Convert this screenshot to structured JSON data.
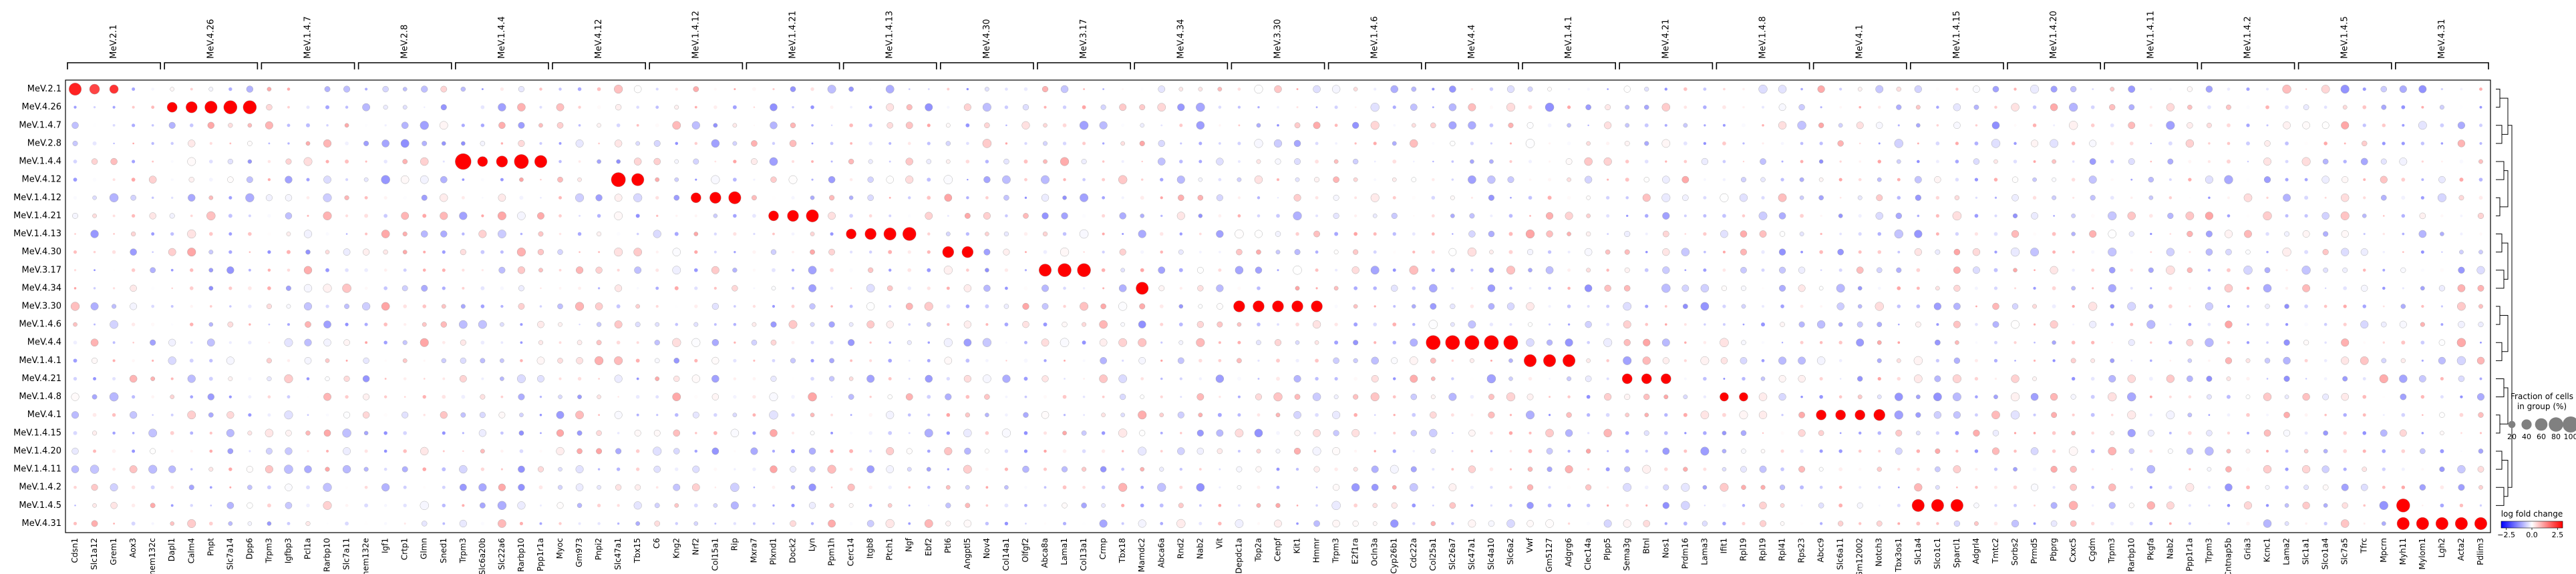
{
  "chart_data": {
    "type": "dotplot",
    "rows": [
      "MeV.2.1",
      "MeV.4.26",
      "MeV.1.4.7",
      "MeV.2.8",
      "MeV.1.4.4",
      "MeV.4.12",
      "MeV.1.4.12",
      "MeV.1.4.21",
      "MeV.1.4.13",
      "MeV.4.30",
      "MeV.3.17",
      "MeV.4.34",
      "MeV.3.30",
      "MeV.1.4.6",
      "MeV.4.4",
      "MeV.1.4.1",
      "MeV.4.21",
      "MeV.1.4.8",
      "MeV.4.1",
      "MeV.1.4.15",
      "MeV.1.4.20",
      "MeV.1.4.11",
      "MeV.1.4.2",
      "MeV.1.4.5",
      "MeV.4.31"
    ],
    "groups": [
      {
        "name": "MeV.2.1",
        "genes": [
          "Cdsn1",
          "Slc1a12",
          "Grem1",
          "Aox3",
          "Tmem132c"
        ]
      },
      {
        "name": "MeV.4.26",
        "genes": [
          "Dapl1",
          "Calm4",
          "Pnpt",
          "Slc7a14",
          "Dpp6"
        ]
      },
      {
        "name": "MeV.1.4.7",
        "genes": [
          "Trpm3",
          "Igfbp3",
          "Pcl1a",
          "Rarbp10",
          "Slc7a11"
        ]
      },
      {
        "name": "MeV.2.8",
        "genes": [
          "Tmem132e",
          "Igf1",
          "Crtp1",
          "Glmn",
          "Sned1"
        ]
      },
      {
        "name": "MeV.1.4.4",
        "genes": [
          "Trpm3",
          "Slc6a20b",
          "Slc22a6",
          "Rarbp10",
          "Ppp1r1a"
        ]
      },
      {
        "name": "MeV.4.12",
        "genes": [
          "Myoc",
          "Gm973",
          "Pnpi2",
          "Slc47a1",
          "Tbx15"
        ]
      },
      {
        "name": "MeV.1.4.12",
        "genes": [
          "C6",
          "Kng2",
          "Nrf2",
          "Col15a1",
          "Rip"
        ]
      },
      {
        "name": "MeV.1.4.21",
        "genes": [
          "Mxra7",
          "Plxnd1",
          "Dock2",
          "Lyn",
          "Ppm1h"
        ]
      },
      {
        "name": "MeV.1.4.13",
        "genes": [
          "Cerc14",
          "Itgb8",
          "Ptch1",
          "Ngf",
          "Ebf2"
        ]
      },
      {
        "name": "MeV.4.30",
        "genes": [
          "Ptl6",
          "Angptl5",
          "Nov4",
          "Col14a1",
          "Olfgf2"
        ]
      },
      {
        "name": "MeV.3.17",
        "genes": [
          "Abca8a",
          "Lama1",
          "Col13a1",
          "Crmp",
          "Tbx18"
        ]
      },
      {
        "name": "MeV.4.34",
        "genes": [
          "Mamdc2",
          "Abca6a",
          "Rnd2",
          "Nab2",
          "Vit"
        ]
      },
      {
        "name": "MeV.3.30",
        "genes": [
          "Depdc1a",
          "Top2a",
          "Cenpf",
          "Kit1",
          "Hmmr"
        ]
      },
      {
        "name": "MeV.1.4.6",
        "genes": [
          "Trpm3",
          "E2f1ra",
          "Ocln3a",
          "Cyp26b1",
          "Cdc22a"
        ]
      },
      {
        "name": "MeV.4.4",
        "genes": [
          "Col25a1",
          "Slc26a7",
          "Slc47a1",
          "Slc4a10",
          "Slc6a2"
        ]
      },
      {
        "name": "MeV.1.4.1",
        "genes": [
          "Vwf",
          "Gm5127",
          "Adgrg6",
          "Clec14a",
          "Plpp5"
        ]
      },
      {
        "name": "MeV.4.21",
        "genes": [
          "Sema3g",
          "Btnl",
          "Nos1",
          "Prdm16",
          "Lama3"
        ]
      },
      {
        "name": "MeV.1.4.8",
        "genes": [
          "Ifit1",
          "Rpl19",
          "Rpl19",
          "Rpl41",
          "Rps23"
        ]
      },
      {
        "name": "MeV.4.1",
        "genes": [
          "Abcc9",
          "Slc6a11",
          "Gm12002",
          "Notch3",
          "Tbx3os1"
        ]
      },
      {
        "name": "MeV.1.4.15",
        "genes": [
          "Slc1a4",
          "Slco1c1",
          "Sparcl1",
          "Adgrl4",
          "Tmtc2"
        ]
      },
      {
        "name": "MeV.1.4.20",
        "genes": [
          "Sorbs2",
          "Prmd5",
          "Pbprg",
          "Cxxc5",
          "Cgdm"
        ]
      },
      {
        "name": "MeV.1.4.11",
        "genes": [
          "Trpm3",
          "Rarbp10",
          "Pkgfa",
          "Nab2",
          "Ppp1r1a"
        ]
      },
      {
        "name": "MeV.1.4.2",
        "genes": [
          "Trpm3",
          "Cntnap5b",
          "Gria3",
          "Kcnc1",
          "Lama2"
        ]
      },
      {
        "name": "MeV.1.4.5",
        "genes": [
          "Slc1a1",
          "Slco1a4",
          "Slc7a5",
          "Tfrc",
          "Mpcrn"
        ]
      },
      {
        "name": "MeV.4.31",
        "genes": [
          "Myh11",
          "Mylom1",
          "Lgh2",
          "Acta2",
          "Pdlim3"
        ]
      }
    ],
    "dominant_cells": [
      {
        "row": "MeV.2.1",
        "col": 0,
        "value": 2.6,
        "fraction": 60
      },
      {
        "row": "MeV.2.1",
        "col": 1,
        "value": 2.2,
        "fraction": 40
      },
      {
        "row": "MeV.2.1",
        "col": 2,
        "value": 2.4,
        "fraction": 30
      },
      {
        "row": "MeV.4.26",
        "col": 5,
        "value": 3.0,
        "fraction": 40
      },
      {
        "row": "MeV.4.26",
        "col": 6,
        "value": 3.0,
        "fraction": 50
      },
      {
        "row": "MeV.4.26",
        "col": 7,
        "value": 3.0,
        "fraction": 60
      },
      {
        "row": "MeV.4.26",
        "col": 8,
        "value": 3.0,
        "fraction": 70
      },
      {
        "row": "MeV.4.26",
        "col": 9,
        "value": 3.0,
        "fraction": 70
      },
      {
        "row": "MeV.1.4.4",
        "col": 20,
        "value": 3.0,
        "fraction": 100
      },
      {
        "row": "MeV.1.4.4",
        "col": 21,
        "value": 3.0,
        "fraction": 40
      },
      {
        "row": "MeV.1.4.4",
        "col": 22,
        "value": 3.0,
        "fraction": 50
      },
      {
        "row": "MeV.1.4.4",
        "col": 23,
        "value": 3.0,
        "fraction": 80
      },
      {
        "row": "MeV.1.4.4",
        "col": 24,
        "value": 3.0,
        "fraction": 60
      },
      {
        "row": "MeV.4.12",
        "col": 28,
        "value": 3.0,
        "fraction": 80
      },
      {
        "row": "MeV.4.12",
        "col": 29,
        "value": 3.0,
        "fraction": 60
      },
      {
        "row": "MeV.1.4.12",
        "col": 32,
        "value": 3.0,
        "fraction": 40
      },
      {
        "row": "MeV.1.4.12",
        "col": 33,
        "value": 3.0,
        "fraction": 50
      },
      {
        "row": "MeV.1.4.12",
        "col": 34,
        "value": 3.0,
        "fraction": 60
      },
      {
        "row": "MeV.1.4.21",
        "col": 36,
        "value": 3.0,
        "fraction": 40
      },
      {
        "row": "MeV.1.4.21",
        "col": 37,
        "value": 3.0,
        "fraction": 50
      },
      {
        "row": "MeV.1.4.21",
        "col": 38,
        "value": 3.0,
        "fraction": 60
      },
      {
        "row": "MeV.1.4.13",
        "col": 40,
        "value": 3.0,
        "fraction": 40
      },
      {
        "row": "MeV.1.4.13",
        "col": 41,
        "value": 3.0,
        "fraction": 50
      },
      {
        "row": "MeV.1.4.13",
        "col": 42,
        "value": 3.0,
        "fraction": 60
      },
      {
        "row": "MeV.1.4.13",
        "col": 43,
        "value": 3.0,
        "fraction": 70
      },
      {
        "row": "MeV.4.30",
        "col": 45,
        "value": 3.0,
        "fraction": 50
      },
      {
        "row": "MeV.4.30",
        "col": 46,
        "value": 3.0,
        "fraction": 50
      },
      {
        "row": "MeV.3.17",
        "col": 50,
        "value": 3.0,
        "fraction": 60
      },
      {
        "row": "MeV.3.17",
        "col": 51,
        "value": 3.0,
        "fraction": 70
      },
      {
        "row": "MeV.3.17",
        "col": 52,
        "value": 3.0,
        "fraction": 70
      },
      {
        "row": "MeV.4.34",
        "col": 55,
        "value": 3.0,
        "fraction": 60
      },
      {
        "row": "MeV.3.30",
        "col": 60,
        "value": 3.0,
        "fraction": 50
      },
      {
        "row": "MeV.3.30",
        "col": 61,
        "value": 3.0,
        "fraction": 50
      },
      {
        "row": "MeV.3.30",
        "col": 62,
        "value": 3.0,
        "fraction": 50
      },
      {
        "row": "MeV.3.30",
        "col": 63,
        "value": 3.0,
        "fraction": 50
      },
      {
        "row": "MeV.3.30",
        "col": 64,
        "value": 3.0,
        "fraction": 50
      },
      {
        "row": "MeV.4.4",
        "col": 70,
        "value": 3.0,
        "fraction": 80
      },
      {
        "row": "MeV.4.4",
        "col": 71,
        "value": 3.0,
        "fraction": 80
      },
      {
        "row": "MeV.4.4",
        "col": 72,
        "value": 3.0,
        "fraction": 80
      },
      {
        "row": "MeV.4.4",
        "col": 73,
        "value": 3.0,
        "fraction": 80
      },
      {
        "row": "MeV.4.4",
        "col": 74,
        "value": 3.0,
        "fraction": 80
      },
      {
        "row": "MeV.1.4.1",
        "col": 75,
        "value": 3.0,
        "fraction": 60
      },
      {
        "row": "MeV.1.4.1",
        "col": 76,
        "value": 3.0,
        "fraction": 60
      },
      {
        "row": "MeV.1.4.1",
        "col": 77,
        "value": 3.0,
        "fraction": 60
      },
      {
        "row": "MeV.4.21",
        "col": 80,
        "value": 3.0,
        "fraction": 40
      },
      {
        "row": "MeV.4.21",
        "col": 81,
        "value": 3.0,
        "fraction": 40
      },
      {
        "row": "MeV.4.21",
        "col": 82,
        "value": 3.0,
        "fraction": 40
      },
      {
        "row": "MeV.1.4.8",
        "col": 85,
        "value": 3.0,
        "fraction": 30
      },
      {
        "row": "MeV.1.4.8",
        "col": 86,
        "value": 3.0,
        "fraction": 30
      },
      {
        "row": "MeV.4.1",
        "col": 90,
        "value": 3.0,
        "fraction": 40
      },
      {
        "row": "MeV.4.1",
        "col": 91,
        "value": 3.0,
        "fraction": 40
      },
      {
        "row": "MeV.4.1",
        "col": 92,
        "value": 3.0,
        "fraction": 40
      },
      {
        "row": "MeV.4.1",
        "col": 93,
        "value": 3.0,
        "fraction": 50
      },
      {
        "row": "MeV.1.4.5",
        "col": 95,
        "value": 3.0,
        "fraction": 60
      },
      {
        "row": "MeV.1.4.5",
        "col": 96,
        "value": 3.0,
        "fraction": 60
      },
      {
        "row": "MeV.1.4.5",
        "col": 97,
        "value": 3.0,
        "fraction": 60
      },
      {
        "row": "MeV.1.4.5",
        "col": 120,
        "value": 3.0,
        "fraction": 70
      },
      {
        "row": "MeV.4.31",
        "col": 120,
        "value": 3.0,
        "fraction": 60
      },
      {
        "row": "MeV.4.31",
        "col": 121,
        "value": 3.0,
        "fraction": 60
      },
      {
        "row": "MeV.4.31",
        "col": 122,
        "value": 3.0,
        "fraction": 60
      },
      {
        "row": "MeV.4.31",
        "col": 123,
        "value": 3.0,
        "fraction": 60
      },
      {
        "row": "MeV.4.31",
        "col": 124,
        "value": 3.0,
        "fraction": 60
      }
    ],
    "size_legend": {
      "title_line1": "Fraction of cells",
      "title_line2": "in group (%)",
      "values": [
        20,
        40,
        60,
        80,
        100
      ]
    },
    "color_legend": {
      "title": "log fold change",
      "ticks": [
        "−2.5",
        "0.0",
        "2.5"
      ],
      "range": [
        -3,
        3
      ],
      "colormap": "bwr"
    },
    "dendrogram": true
  }
}
